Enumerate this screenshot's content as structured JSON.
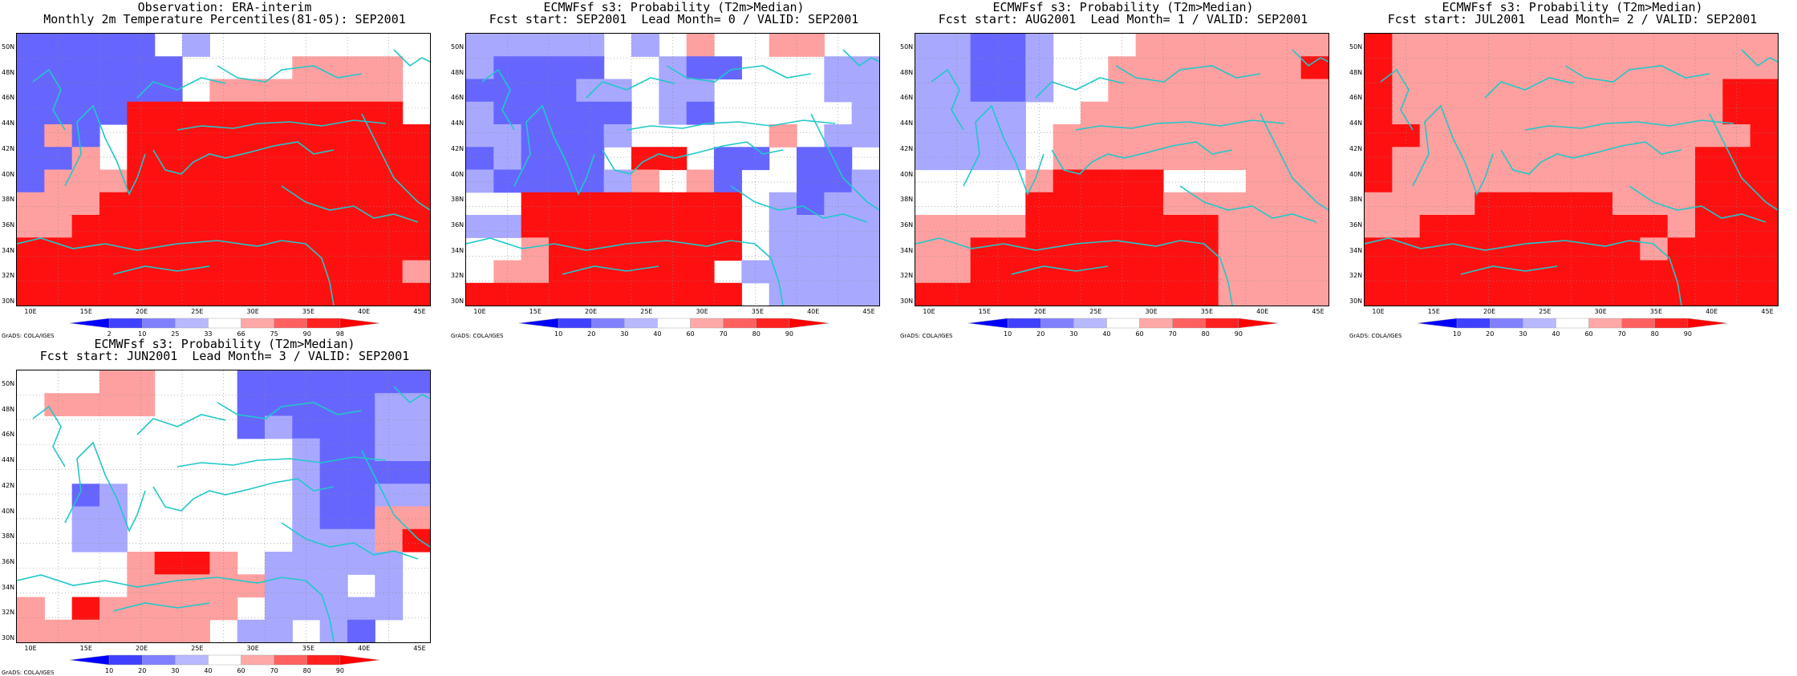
{
  "panels": [
    {
      "title1": "Observation: ERA-interim",
      "title2": "Monthly 2m Temperature Percentiles(81-05): SEP2001",
      "legend_labels": [
        "2",
        "10",
        "25",
        "33",
        "66",
        "75",
        "90",
        "98"
      ],
      "grid": [
        "BBBBBW9WWWWWWWW",
        "BBBBBBWWWW5555W",
        "BBBBBBW5555555W",
        "BBBBRRRRRRRRRRW",
        "B5BWRRRRRRRRRRR",
        "BB5WRRRRRRRRRRR",
        "B555RRRRRRRRRRR",
        "555RRRRRRRRRRRR",
        "55RRRRRRRRRRRRR",
        "RRRRRRRRRRRRRRR",
        "RRRRRRRRRRRRRR5",
        "RRRRRRRRRRRRRRR"
      ]
    },
    {
      "title1": "ECMWFsf s3: Probability (T2m>Median)",
      "title2": "Fcst start: SEP2001  Lead Month= 0 / VALID: SEP2001",
      "legend_labels": [
        "10",
        "20",
        "30",
        "40",
        "60",
        "70",
        "80",
        "90"
      ],
      "grid": [
        "99999W9W5WW55WW",
        "9BBBBWW9BBWWW99",
        "BBBB99W99WWWW99",
        "9BBBBBW9BWWWWW9",
        "99BBB9WWWWW5W99",
        "B9BBBWRRWBBWBBW",
        "9BBBB95W5BWWBB9",
        "WWRRRRRRRRW9B99",
        "99RRRRRRRRW9999",
        "WW5RRRRRRRW9999",
        "W55RRRRRRW99999",
        "RRRRRRRRRRW9999"
      ]
    },
    {
      "title1": "ECMWFsf s3: Probability (T2m>Median)",
      "title2": "Fcst start: AUG2001  Lead Month= 1 / VALID: SEP2001",
      "legend_labels": [
        "10",
        "20",
        "30",
        "40",
        "60",
        "70",
        "80",
        "90"
      ],
      "grid": [
        "99BB9WWW5555555",
        "99BB9WW5555555R",
        "99BB9WW55555555",
        "9999WW555555555",
        "9999W5555555555",
        "9999W5555555555",
        "WWWW5RRRRWWW555",
        "WWWWRRRRR555555",
        "5555RRRRRRR5555",
        "55RRRRRRRRR5555",
        "55RRRRRRRRR5555",
        "RRRRRRRRRRR5555"
      ]
    },
    {
      "title1": "ECMWFsf s3: Probability (T2m>Median)",
      "title2": "Fcst start: JUL2001  Lead Month= 2 / VALID: SEP2001",
      "legend_labels": [
        "10",
        "20",
        "30",
        "40",
        "60",
        "70",
        "80",
        "90"
      ],
      "grid": [
        "R55555555555555",
        "R55555555555555",
        "R555555555555RR",
        "R555555555555RR",
        "RR555555555555R",
        "R55555555555RRR",
        "R55555555555RRR",
        "5555RRRRR555RRR",
        "55RRRRRRRRR5RRR",
        "RRRRRRRRRR5RRRR",
        "RRRRRRRRRRRRRRR",
        "RRRRRRRRRRRRRRR"
      ]
    },
    {
      "title1": "ECMWFsf s3: Probability (T2m>Median)",
      "title2": "Fcst start: JUN2001  Lead Month= 3 / VALID: SEP2001",
      "legend_labels": [
        "10",
        "20",
        "30",
        "40",
        "60",
        "70",
        "80",
        "90"
      ],
      "grid": [
        "WWW55WWWBBBBBBB",
        "W5555WWWBBBBB99",
        "WWWWWWWWB9BBB99",
        "WWWWWWWWWW9BB99",
        "WWWWWWWWWW9BBBB",
        "WWB9WWWWWW9BB99",
        "WW99WWWWWW9BB55",
        "WW99WWWWWW9995R",
        "WWWW5RR5W99999W",
        "WWWW55555999W9W",
        "5WR55555W99999W",
        "5555555W99W9BWW"
      ]
    }
  ],
  "legend_colors": [
    "#0000ff",
    "#4040ff",
    "#8080ff",
    "#b8b8ff",
    "#ffffff",
    "#ffa8a8",
    "#ff6060",
    "#ff2020",
    "#ff0000"
  ],
  "cell_colors": {
    "B": "#6666ff",
    "9": "#a8a8ff",
    "W": "#ffffff",
    "5": "#ffa0a0",
    "R": "#ff1010"
  },
  "y_labels": [
    "50N",
    "48N",
    "46N",
    "44N",
    "42N",
    "40N",
    "38N",
    "36N",
    "34N",
    "32N",
    "30N"
  ],
  "x_labels": [
    "10E",
    "15E",
    "20E",
    "25E",
    "30E",
    "35E",
    "40E",
    "45E"
  ],
  "credit": "GrADS: COLA/IGES"
}
